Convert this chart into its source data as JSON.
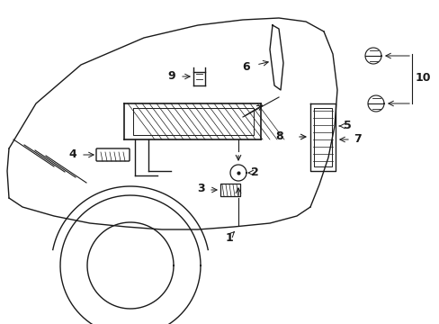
{
  "bg_color": "#ffffff",
  "line_color": "#1a1a1a",
  "fig_width": 4.89,
  "fig_height": 3.6,
  "dpi": 100,
  "label_fs": 9
}
